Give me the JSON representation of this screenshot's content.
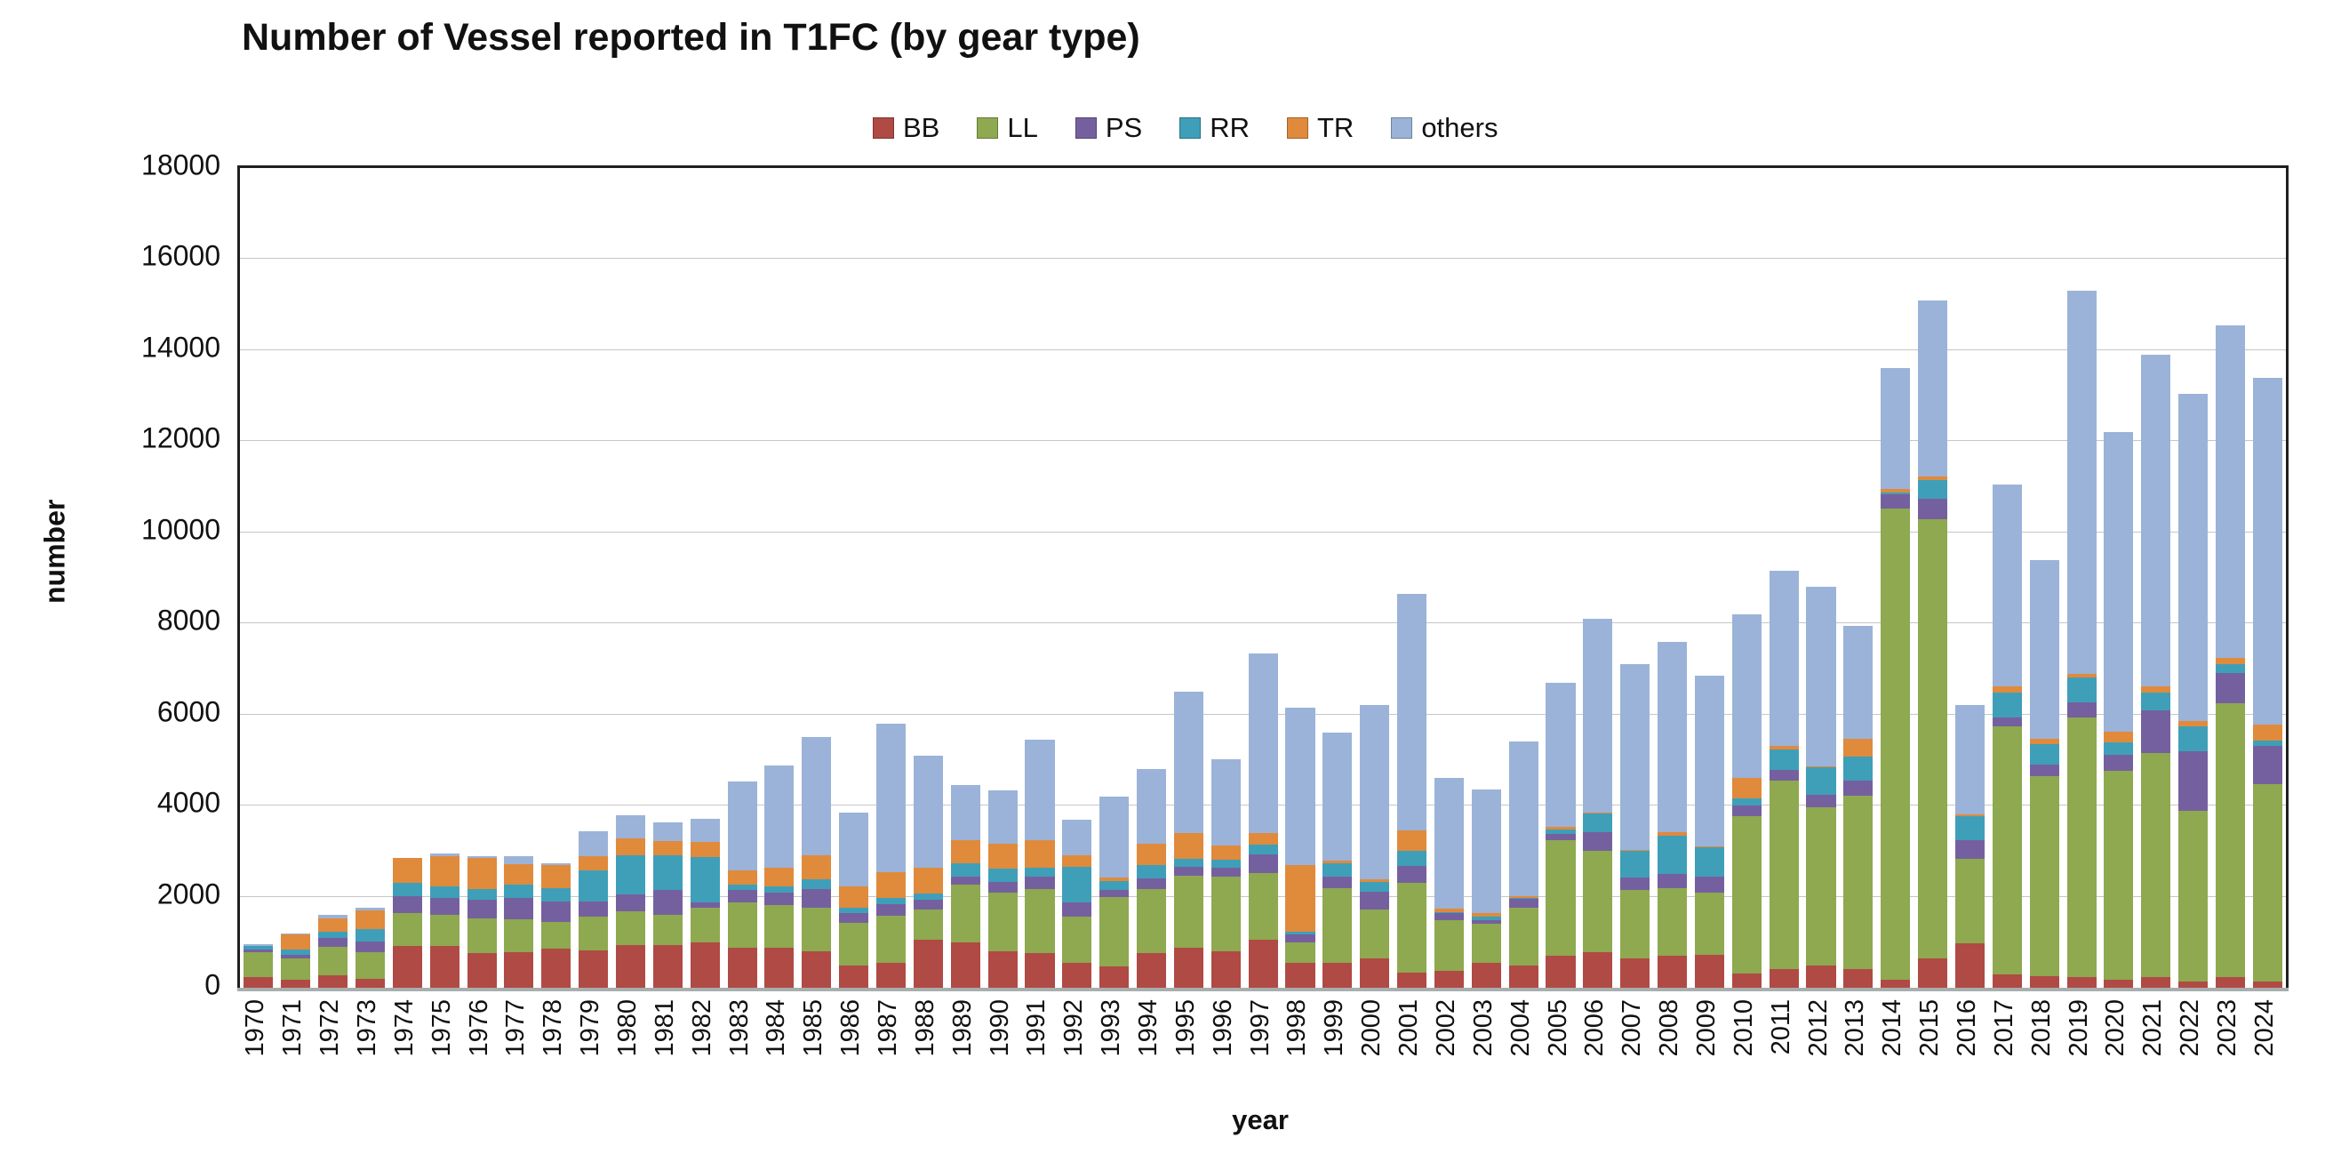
{
  "chart_data": {
    "type": "bar",
    "stacked": true,
    "title": "Number of Vessel reported in T1FC (by gear type)",
    "xlabel": "year",
    "ylabel": "number",
    "ylim": [
      0,
      18000
    ],
    "ytick_step": 2000,
    "grid": "horizontal",
    "legend_position": "top-center",
    "categories": [
      "1970",
      "1971",
      "1972",
      "1973",
      "1974",
      "1975",
      "1976",
      "1977",
      "1978",
      "1979",
      "1980",
      "1981",
      "1982",
      "1983",
      "1984",
      "1985",
      "1986",
      "1987",
      "1988",
      "1989",
      "1990",
      "1991",
      "1992",
      "1993",
      "1994",
      "1995",
      "1996",
      "1997",
      "1998",
      "1999",
      "2000",
      "2001",
      "2002",
      "2003",
      "2004",
      "2005",
      "2006",
      "2007",
      "2008",
      "2009",
      "2010",
      "2011",
      "2012",
      "2013",
      "2014",
      "2015",
      "2016",
      "2017",
      "2018",
      "2019",
      "2020",
      "2021",
      "2022",
      "2023",
      "2024"
    ],
    "series": [
      {
        "name": "BB",
        "color": "#B04A45",
        "values": [
          240,
          180,
          280,
          190,
          920,
          920,
          760,
          775,
          855,
          820,
          930,
          930,
          1000,
          880,
          880,
          810,
          495,
          550,
          1045,
          1000,
          810,
          765,
          555,
          460,
          765,
          880,
          810,
          1045,
          555,
          555,
          650,
          340,
          380,
          555,
          495,
          695,
          790,
          650,
          695,
          730,
          320,
          415,
          495,
          415,
          180,
          650,
          970,
          295,
          260,
          225,
          180,
          225,
          140,
          225,
          140
        ]
      },
      {
        "name": "LL",
        "color": "#8EA94F",
        "values": [
          550,
          470,
          615,
          590,
          730,
          685,
          760,
          725,
          600,
          740,
          740,
          680,
          750,
          990,
          940,
          940,
          940,
          1035,
          680,
          1260,
          1270,
          1410,
          1000,
          1530,
          1410,
          1575,
          1625,
          1480,
          450,
          1630,
          1060,
          1960,
          1095,
          850,
          1260,
          2550,
          2220,
          1500,
          1490,
          1355,
          3455,
          4140,
          3465,
          3810,
          10340,
          9630,
          1855,
          5440,
          4380,
          5715,
          4580,
          4920,
          3750,
          6030,
          4340
        ]
      },
      {
        "name": "PS",
        "color": "#75609F",
        "values": [
          50,
          80,
          205,
          245,
          355,
          370,
          410,
          470,
          435,
          340,
          390,
          530,
          120,
          270,
          260,
          425,
          200,
          260,
          210,
          175,
          235,
          260,
          320,
          155,
          235,
          210,
          210,
          400,
          165,
          260,
          400,
          380,
          165,
          70,
          190,
          140,
          400,
          270,
          320,
          355,
          235,
          235,
          285,
          330,
          310,
          450,
          425,
          200,
          270,
          320,
          355,
          945,
          1300,
          660,
          830
        ]
      },
      {
        "name": "RR",
        "color": "#3F9FB8",
        "values": [
          70,
          115,
          140,
          270,
          290,
          260,
          240,
          305,
          300,
          670,
          845,
          760,
          1010,
          120,
          140,
          200,
          120,
          120,
          140,
          295,
          295,
          210,
          775,
          200,
          285,
          175,
          165,
          210,
          70,
          295,
          210,
          330,
          30,
          80,
          30,
          95,
          425,
          590,
          825,
          650,
          155,
          440,
          590,
          520,
          40,
          415,
          520,
          555,
          440,
          545,
          270,
          400,
          545,
          200,
          120
        ]
      },
      {
        "name": "TR",
        "color": "#E08A3C",
        "values": [
          10,
          320,
          280,
          400,
          550,
          660,
          690,
          440,
          510,
          330,
          375,
          330,
          320,
          320,
          420,
          530,
          470,
          565,
          565,
          505,
          555,
          590,
          260,
          75,
          470,
          555,
          305,
          260,
          1460,
          60,
          60,
          440,
          70,
          85,
          30,
          50,
          20,
          20,
          85,
          20,
          440,
          85,
          20,
          390,
          85,
          85,
          30,
          120,
          120,
          85,
          240,
          120,
          120,
          120,
          355
        ]
      },
      {
        "name": "others",
        "color": "#9BB3D8",
        "values": [
          40,
          35,
          85,
          55,
          10,
          50,
          40,
          180,
          30,
          530,
          505,
          400,
          505,
          1950,
          2250,
          2600,
          1630,
          3270,
          2460,
          1210,
          1175,
          2210,
          790,
          1780,
          1635,
          3105,
          1905,
          3955,
          3450,
          2800,
          3820,
          5200,
          2870,
          2710,
          3395,
          3170,
          4245,
          4070,
          4185,
          3740,
          3595,
          3835,
          3945,
          2485,
          2645,
          3870,
          2400,
          4440,
          3930,
          8410,
          6575,
          7290,
          7195,
          7315,
          7615
        ]
      }
    ],
    "style": {
      "gridline_color": "#c6c6c6",
      "axis_color": "#1f1f1f",
      "background": "#ffffff"
    }
  }
}
